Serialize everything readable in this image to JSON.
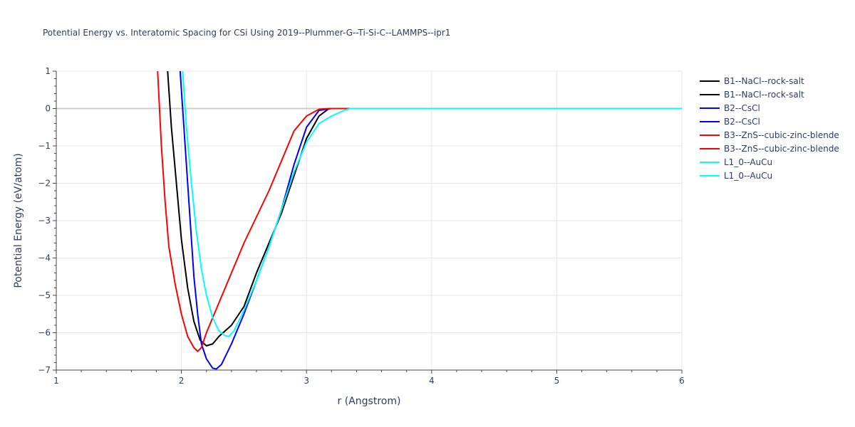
{
  "chart_data": {
    "type": "line",
    "title": "Potential Energy vs. Interatomic Spacing for CSi Using 2019--Plummer-G--Ti-Si-C--LAMMPS--ipr1",
    "xlabel": "r (Angstrom)",
    "ylabel": "Potential Energy (eV/atom)",
    "xlim": [
      1,
      6
    ],
    "ylim": [
      -7,
      1
    ],
    "xticks": [
      1,
      2,
      3,
      4,
      5,
      6
    ],
    "yticks": [
      1,
      0,
      -1,
      -2,
      -3,
      -4,
      -5,
      -6,
      -7
    ],
    "grid": true,
    "legend_position": "right",
    "series": [
      {
        "name": "B1--NaCl--rock-salt",
        "color": "#000000",
        "x": [
          1.89,
          1.92,
          1.96,
          2.0,
          2.05,
          2.1,
          2.15,
          2.2,
          2.25,
          2.3,
          2.4,
          2.5,
          2.6,
          2.7,
          2.8,
          2.9,
          3.0,
          3.1,
          3.18,
          3.25,
          6.0
        ],
        "y": [
          1.0,
          -0.5,
          -2.0,
          -3.5,
          -4.8,
          -5.7,
          -6.2,
          -6.35,
          -6.3,
          -6.1,
          -5.8,
          -5.3,
          -4.4,
          -3.6,
          -2.8,
          -1.8,
          -0.8,
          -0.2,
          0.0,
          0.0,
          0.0
        ]
      },
      {
        "name": "B1--NaCl--rock-salt",
        "color": "#000000",
        "x": [],
        "y": []
      },
      {
        "name": "B2--CsCl",
        "color": "#0000ff",
        "x": [
          1.99,
          2.02,
          2.05,
          2.08,
          2.1,
          2.13,
          2.16,
          2.2,
          2.25,
          2.28,
          2.32,
          2.4,
          2.5,
          2.6,
          2.7,
          2.8,
          2.9,
          3.0,
          3.1,
          3.2,
          3.3,
          6.0
        ],
        "y": [
          1.0,
          -0.5,
          -2.0,
          -3.5,
          -4.5,
          -5.5,
          -6.3,
          -6.7,
          -6.95,
          -6.97,
          -6.85,
          -6.3,
          -5.5,
          -4.6,
          -3.7,
          -2.7,
          -1.5,
          -0.5,
          -0.05,
          0.0,
          0.0,
          0.0
        ]
      },
      {
        "name": "B2--CsCl",
        "color": "#0000ff",
        "x": [],
        "y": []
      },
      {
        "name": "B3--ZnS--cubic-zinc-blende",
        "color": "#ff0000",
        "x": [
          1.81,
          1.84,
          1.87,
          1.9,
          1.95,
          2.0,
          2.05,
          2.1,
          2.13,
          2.16,
          2.2,
          2.3,
          2.4,
          2.5,
          2.6,
          2.7,
          2.8,
          2.9,
          3.0,
          3.1,
          3.18,
          3.25,
          6.0
        ],
        "y": [
          1.0,
          -1.0,
          -2.5,
          -3.7,
          -4.7,
          -5.5,
          -6.1,
          -6.4,
          -6.5,
          -6.4,
          -6.0,
          -5.2,
          -4.4,
          -3.6,
          -2.9,
          -2.2,
          -1.4,
          -0.6,
          -0.2,
          -0.02,
          0.0,
          0.0,
          0.0
        ]
      },
      {
        "name": "B3--ZnS--cubic-zinc-blende",
        "color": "#ff0000",
        "x": [],
        "y": []
      },
      {
        "name": "L1_0--AuCu",
        "color": "#00ffff",
        "x": [
          2.01,
          2.04,
          2.08,
          2.12,
          2.16,
          2.2,
          2.25,
          2.3,
          2.35,
          2.38,
          2.42,
          2.5,
          2.6,
          2.7,
          2.8,
          2.9,
          3.0,
          3.1,
          3.2,
          3.3,
          3.35,
          3.4,
          6.0
        ],
        "y": [
          1.0,
          -0.5,
          -2.0,
          -3.3,
          -4.3,
          -5.0,
          -5.6,
          -5.95,
          -6.08,
          -6.1,
          -5.95,
          -5.4,
          -4.6,
          -3.7,
          -2.7,
          -1.7,
          -0.9,
          -0.4,
          -0.2,
          -0.05,
          0.0,
          0.0,
          0.0
        ]
      },
      {
        "name": "L1_0--AuCu",
        "color": "#00ffff",
        "x": [],
        "y": []
      }
    ]
  }
}
